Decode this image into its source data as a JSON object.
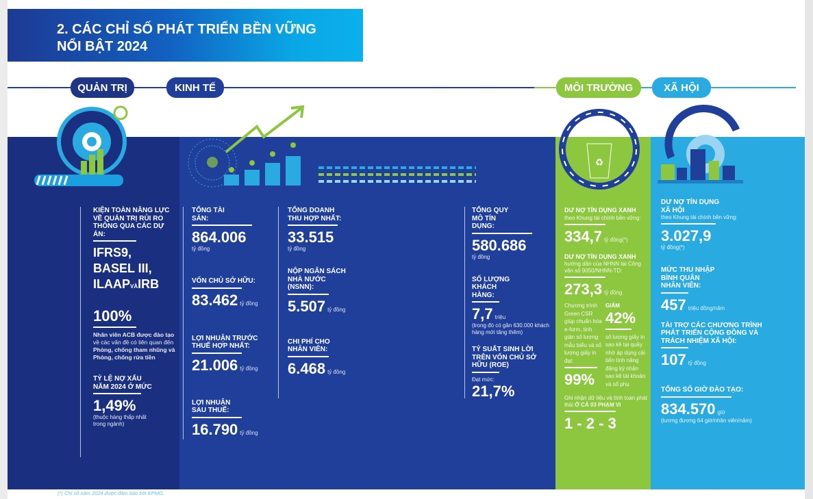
{
  "header": {
    "title_line1": "2. CÁC CHỈ SỐ PHÁT TRIỂN BỀN VỮNG",
    "title_line2": "NỔI BẬT 2024"
  },
  "colors": {
    "navy": "#1b2f80",
    "economy_blue": "#1f3f9a",
    "green": "#8dc63f",
    "light_blue": "#29abe2"
  },
  "pillars": {
    "governance": "QUẢN TRỊ",
    "economy": "KINH TẾ",
    "environment": "MÔI TRƯỜNG",
    "social": "XÃ HỘI"
  },
  "governance": {
    "h1": "KIỆN TOÀN NĂNG LỰC VỀ QUẢN TRỊ RỦI RO THÔNG QUA CÁC DỰ ÁN:",
    "projects_l1": "IFRS9,",
    "projects_l2": "BASEL III,",
    "projects_l3a": "ILAAP",
    "projects_and": "VÀ",
    "projects_l3b": "IRB",
    "training_value": "100%",
    "training_b1": "Nhân viên ACB được đào tạo",
    "training_n1": " về các vấn đề có liên quan đến ",
    "training_b2": "Phòng, chống tham nhũng và Phòng, chống rửa tiền",
    "npl_label": "TỶ LỆ NỢ XẤU NĂM 2024 Ở MỨC",
    "npl_value": "1,49%",
    "npl_note": "(thuộc hàng thấp nhất trong ngành)"
  },
  "economy": {
    "total_assets": {
      "label": "TỔNG TÀI SẢN:",
      "value": "864.006",
      "unit": "tỷ đồng"
    },
    "equity": {
      "label": "VỐN CHỦ SỞ HỮU:",
      "value": "83.462",
      "unit": "tỷ đồng"
    },
    "pbt": {
      "label": "LỢI NHUẬN TRƯỚC THUẾ HỢP NHẤT:",
      "value": "21.006",
      "unit": "tỷ đồng"
    },
    "pat": {
      "label": "LỢI NHUẬN SAU THUẾ:",
      "value": "16.790",
      "unit": "tỷ đồng"
    },
    "revenue": {
      "label": "TỔNG DOANH THU HỢP NHẤT:",
      "value": "33.515",
      "unit": "tỷ đồng"
    },
    "tax": {
      "label": "NỘP NGÂN SÁCH NHÀ NƯỚC (NSNN):",
      "value": "5.507",
      "unit": "tỷ đồng"
    },
    "staff_cost": {
      "label": "CHI PHÍ CHO NHÂN VIÊN:",
      "value": "6.468",
      "unit": "tỷ đồng"
    },
    "credit": {
      "label": "TỔNG QUY MÔ TÍN DỤNG:",
      "value": "580.686",
      "unit": "tỷ đồng"
    },
    "customers": {
      "label": "SỐ LƯỢNG KHÁCH HÀNG:",
      "value": "7,7",
      "unit": "triệu",
      "note": "(trong đó có gần 630.000 khách hàng mới tăng thêm)"
    },
    "roe": {
      "label": "TỶ SUẤT SINH LỜI TRÊN VỐN CHỦ SỞ HỮU (ROE)",
      "prefix": "Đạt mức:",
      "value": "21,7%"
    }
  },
  "environment": {
    "green1": {
      "label": "DƯ NỢ TÍN DỤNG XANH",
      "sub": "theo Khung tài chính bền vững:",
      "value": "334,7",
      "unit": "tỷ đồng(*)"
    },
    "green2": {
      "label": "DƯ NỢ TÍN DỤNG XANH",
      "sub": "hướng dẫn của NHNN tại Công văn số 9050/NHNN-TD:",
      "value": "273,3",
      "unit": "tỷ đồng"
    },
    "csr_text": "Chương trình Green CSR giúp chuẩn hóa e-form, tinh giản số lượng mẫu biểu và số lượng giấy in đạt:",
    "csr_value": "99%",
    "reduce_label": "GIẢM",
    "reduce_value": "42%",
    "reduce_text": "số lượng giấy in sao kê tại quầy nhờ áp dụng cải tiến tính năng đăng ký nhận sao kê tài khoản và sổ phụ",
    "scope_text": "Ghi nhận dữ liệu và tính toán phát thải ",
    "scope_bold": "Ở CẢ 03 PHẠM VI",
    "scope_value": "1 - 2 - 3"
  },
  "social": {
    "social_credit": {
      "label": "DƯ NỢ TÍN DỤNG XÃ HỘI",
      "sub": "theo Khung tài chính bền vững:",
      "value": "3.027,9",
      "unit": "tỷ đồng(*)"
    },
    "income": {
      "label": "MỨC THU NHẬP BÌNH QUÂN NHÂN VIÊN:",
      "value": "457",
      "unit": "triệu đồng/năm"
    },
    "csr": {
      "label": "TÀI TRỢ CÁC CHƯƠNG TRÌNH PHÁT TRIỂN CỘNG ĐỒNG VÀ TRÁCH NHIỆM XÃ HỘI:",
      "value": "107",
      "unit": "tỷ đồng"
    },
    "training": {
      "label": "TỔNG SỐ GIỜ ĐÀO TẠO:",
      "value": "834.570",
      "unit": "giờ",
      "note": "(tương đương 64 giờ/nhân viên/năm)"
    }
  },
  "footnote": "(*) Chỉ số năm 2024 được đảm bảo bởi KPMG."
}
